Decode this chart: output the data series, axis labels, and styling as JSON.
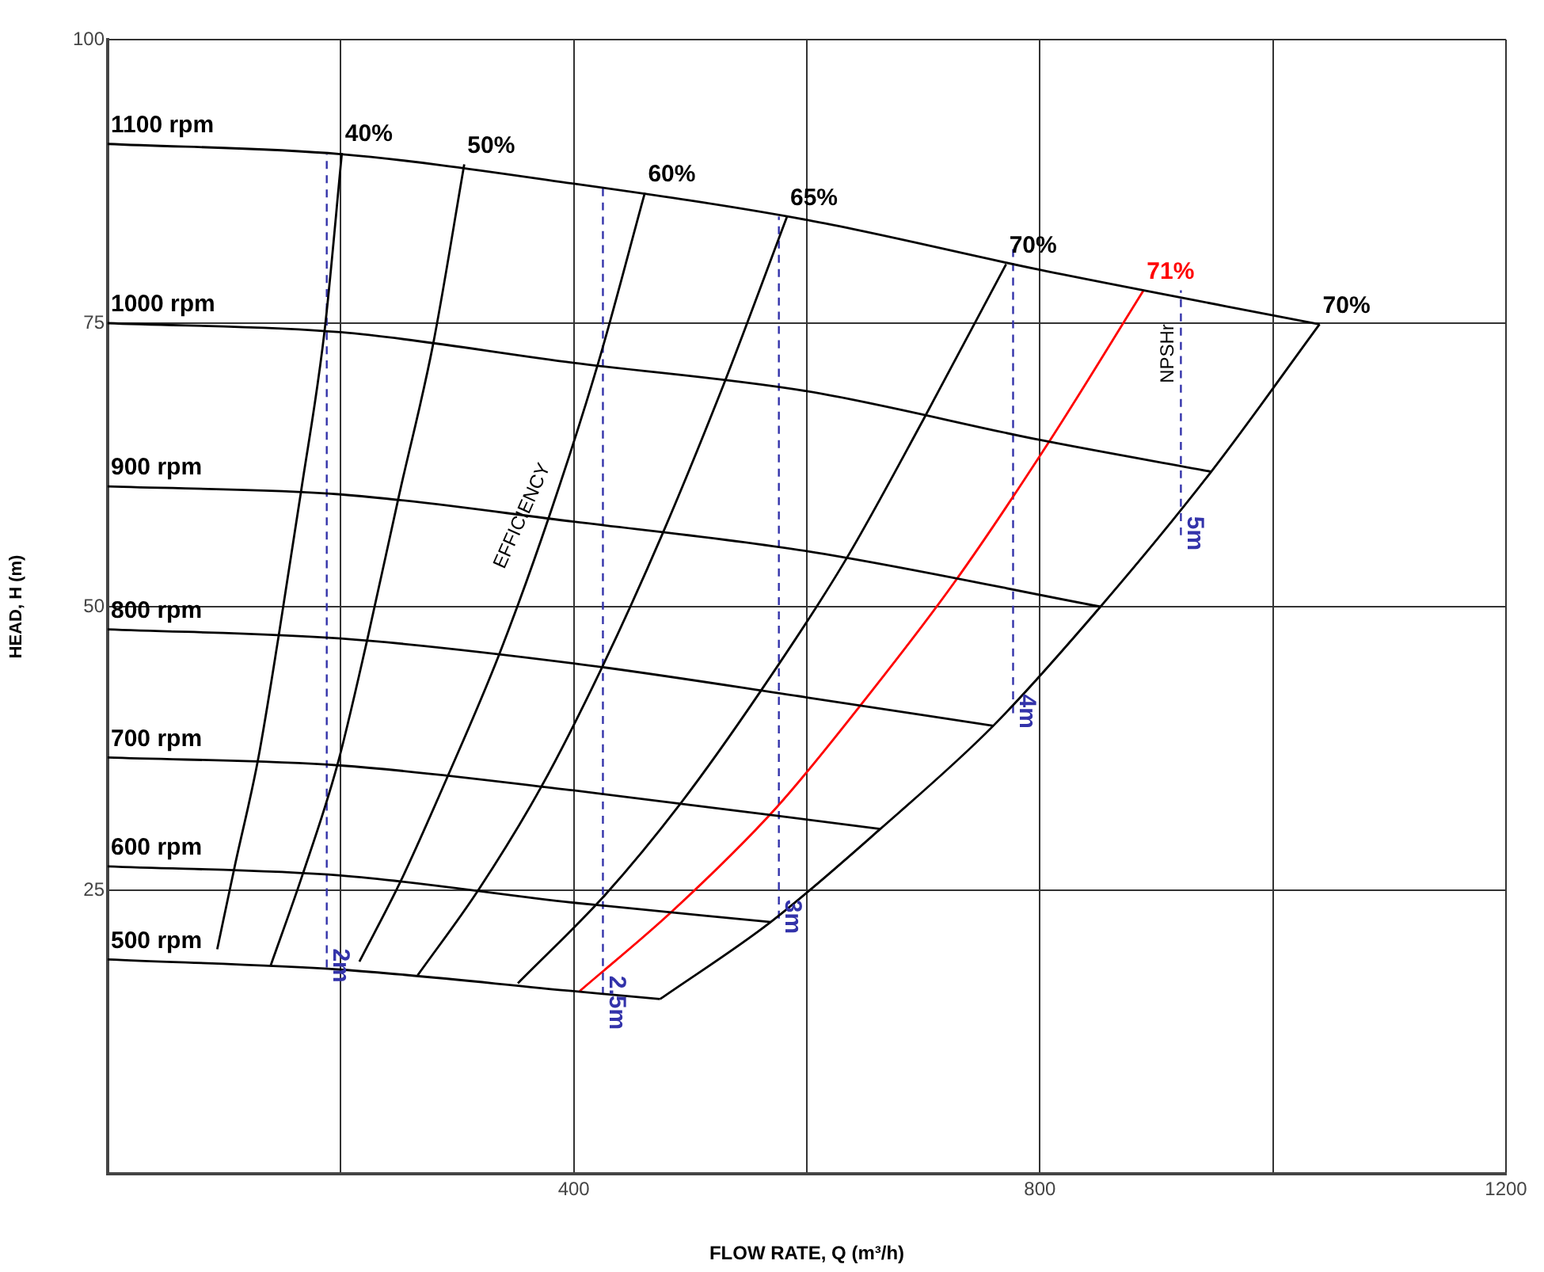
{
  "chart_data": {
    "type": "line",
    "xlabel": "FLOW RATE, Q (m³/h)",
    "ylabel": "HEAD, H (m)",
    "xlim": [
      0,
      1200
    ],
    "ylim": [
      0,
      100
    ],
    "xticks": [
      {
        "value": 200,
        "label": null
      },
      400,
      {
        "value": 600,
        "label": null
      },
      800,
      {
        "value": 1000,
        "label": null
      },
      1200
    ],
    "yticks": [
      25,
      50,
      75,
      100
    ],
    "grid": true,
    "marker": "none",
    "annotations": [
      {
        "text": "EFFICIENCY",
        "x": 356,
        "y": 58
      },
      "NPSHr"
    ],
    "series": [
      {
        "name": "1100 rpm",
        "color": "#000000",
        "line_style": "solid",
        "x": [
          0,
          200,
          400,
          600,
          800,
          1040
        ],
        "values": [
          90.8,
          89.9,
          87.3,
          84.1,
          79.7,
          74.9
        ]
      },
      {
        "name": "1000 rpm",
        "color": "#000000",
        "line_style": "solid",
        "x": [
          0,
          200,
          400,
          600,
          800,
          947
        ],
        "values": [
          75,
          74.2,
          71.5,
          69,
          64.7,
          61.9
        ]
      },
      {
        "name": "900 rpm",
        "color": "#000000",
        "line_style": "solid",
        "x": [
          0,
          200,
          400,
          600,
          852
        ],
        "values": [
          60.6,
          59.9,
          57.5,
          54.9,
          50
        ]
      },
      {
        "name": "800 rpm",
        "color": "#000000",
        "line_style": "solid",
        "x": [
          0,
          200,
          400,
          600,
          760
        ],
        "values": [
          48,
          47.2,
          45,
          42,
          39.5
        ]
      },
      {
        "name": "700 rpm",
        "color": "#000000",
        "line_style": "solid",
        "x": [
          0,
          200,
          400,
          663
        ],
        "values": [
          36.7,
          36,
          33.8,
          30.4
        ]
      },
      {
        "name": "600 rpm",
        "color": "#000000",
        "line_style": "solid",
        "x": [
          0,
          200,
          400,
          569
        ],
        "values": [
          27.1,
          26.3,
          23.9,
          22.2
        ]
      },
      {
        "name": "500 rpm",
        "color": "#000000",
        "line_style": "solid",
        "x": [
          0,
          200,
          400,
          474
        ],
        "values": [
          18.9,
          18,
          16.1,
          15.4
        ]
      },
      {
        "name": "40%",
        "color": "#000000",
        "line_style": "solid",
        "x": [
          94,
          109,
          129,
          147,
          166,
          186,
          201
        ],
        "values": [
          19.8,
          27.1,
          36.5,
          47.6,
          60.2,
          74.2,
          90
        ]
      },
      {
        "name": "50%",
        "color": "#000000",
        "line_style": "solid",
        "x": [
          140,
          167,
          197,
          223,
          250,
          279,
          306
        ],
        "values": [
          18.4,
          26.3,
          36,
          47.2,
          59.8,
          73,
          89
        ]
      },
      {
        "name": "60%",
        "color": "#000000",
        "line_style": "solid",
        "x": [
          216,
          251,
          292,
          336,
          379,
          421,
          461
        ],
        "values": [
          18.7,
          25.7,
          35.1,
          45.8,
          58,
          71.5,
          86.5
        ]
      },
      {
        "name": "65%",
        "color": "#000000",
        "line_style": "solid",
        "x": [
          266,
          318,
          372,
          424,
          476,
          529,
          583
        ],
        "values": [
          17.5,
          25,
          34.1,
          44.6,
          56.4,
          69.7,
          84.4
        ]
      },
      {
        "name": "70%",
        "color": "#000000",
        "line_style": "solid",
        "x": [
          352,
          427,
          492,
          560,
          632,
          700,
          771
        ],
        "values": [
          16.8,
          24.6,
          32.7,
          42.5,
          53.9,
          66.5,
          80.2
        ]
      },
      {
        "name": "71%",
        "color": "#ff0000",
        "line_style": "solid",
        "x": [
          405,
          485,
          574,
          646,
          727,
          807,
          889
        ],
        "values": [
          16.1,
          23.2,
          32.3,
          41.3,
          52.2,
          64.4,
          77.9
        ]
      },
      {
        "name": "70%",
        "color": "#000000",
        "line_style": "solid",
        "x": [
          474,
          569,
          663,
          760,
          852,
          947,
          1040
        ],
        "values": [
          15.4,
          22.2,
          30.4,
          39.5,
          50,
          61.9,
          74.9
        ]
      },
      {
        "name": "2m",
        "color": "#3333aa",
        "line_style": "dashed",
        "x": [
          188,
          188
        ],
        "values": [
          18.2,
          89.9
        ]
      },
      {
        "name": "2.5m",
        "color": "#3333aa",
        "line_style": "dashed",
        "x": [
          425,
          425
        ],
        "values": [
          15.8,
          87
        ]
      },
      {
        "name": "3m",
        "color": "#3333aa",
        "line_style": "dashed",
        "x": [
          576,
          576
        ],
        "values": [
          22.5,
          84.4
        ]
      },
      {
        "name": "4m",
        "color": "#3333aa",
        "line_style": "dashed",
        "x": [
          777,
          777
        ],
        "values": [
          40.6,
          81.8
        ]
      },
      {
        "name": "5m",
        "color": "#3333aa",
        "line_style": "dashed",
        "x": [
          921,
          921
        ],
        "values": [
          56.3,
          77.9
        ]
      }
    ]
  }
}
